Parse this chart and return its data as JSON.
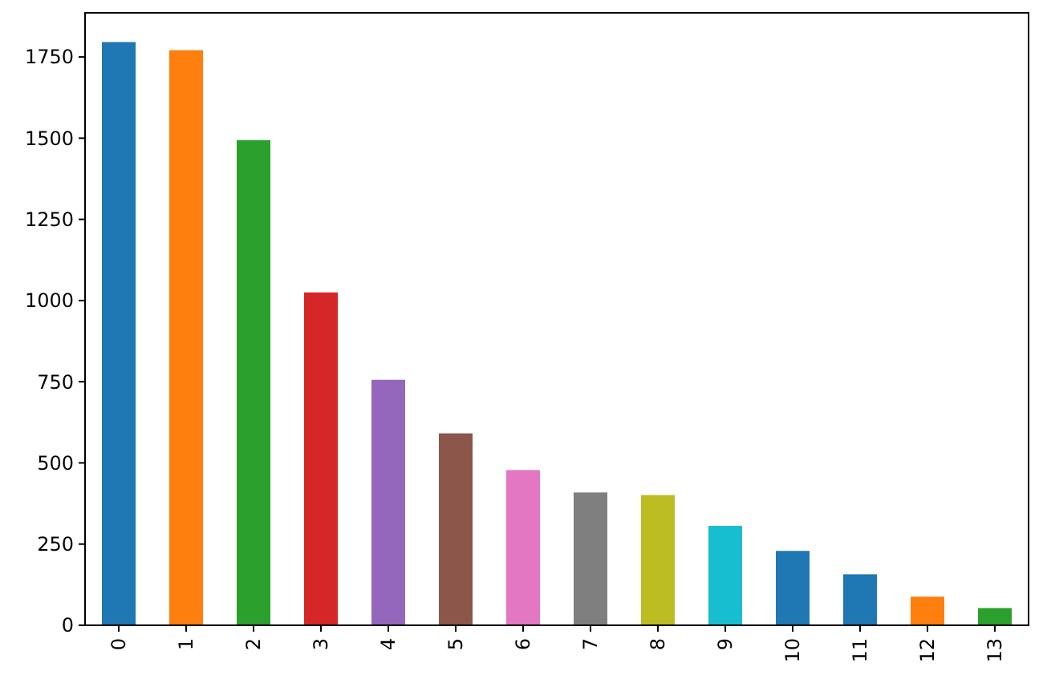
{
  "chart_data": {
    "type": "bar",
    "categories": [
      "0",
      "1",
      "2",
      "3",
      "4",
      "5",
      "6",
      "7",
      "8",
      "9",
      "10",
      "11",
      "12",
      "13"
    ],
    "values": [
      1796,
      1771,
      1494,
      1025,
      756,
      591,
      478,
      409,
      401,
      306,
      229,
      157,
      88,
      53
    ],
    "colors": [
      "#1f77b4",
      "#ff7f0e",
      "#2ca02c",
      "#d62728",
      "#9467bd",
      "#8c564b",
      "#e377c2",
      "#7f7f7f",
      "#bcbd22",
      "#17becf",
      "#1f77b4",
      "#1f77b4",
      "#ff7f0e",
      "#2ca02c"
    ],
    "ylim": [
      0,
      1886
    ],
    "yticks": [
      0,
      250,
      500,
      750,
      1000,
      1250,
      1500,
      1750
    ],
    "grid": false
  }
}
